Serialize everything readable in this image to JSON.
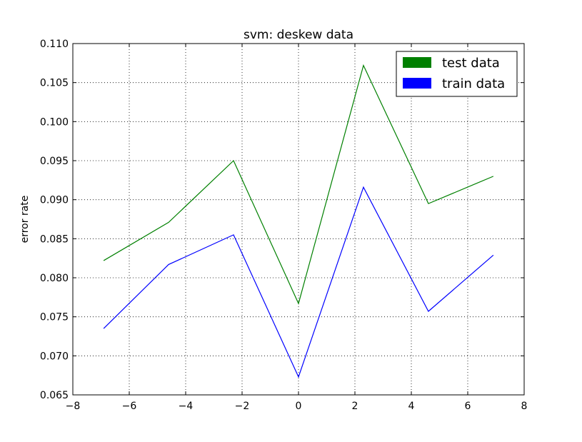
{
  "chart_data": {
    "type": "line",
    "title": "svm: deskew data",
    "xlabel": "",
    "ylabel": "error rate",
    "xlim": [
      -8,
      8
    ],
    "ylim": [
      0.065,
      0.11
    ],
    "xticks": [
      -8,
      -6,
      -4,
      -2,
      0,
      2,
      4,
      6,
      8
    ],
    "xtick_labels": [
      "−8",
      "−6",
      "−4",
      "−2",
      "0",
      "2",
      "4",
      "6",
      "8"
    ],
    "yticks": [
      0.065,
      0.07,
      0.075,
      0.08,
      0.085,
      0.09,
      0.095,
      0.1,
      0.105,
      0.11
    ],
    "ytick_labels": [
      "0.065",
      "0.070",
      "0.075",
      "0.080",
      "0.085",
      "0.090",
      "0.095",
      "0.100",
      "0.105",
      "0.110"
    ],
    "grid": true,
    "legend_position": "top-right",
    "x": [
      -6.908,
      -4.605,
      -2.303,
      0,
      2.303,
      4.605,
      6.908
    ],
    "series": [
      {
        "name": "test data",
        "color": "#008000",
        "values": [
          0.0822,
          0.0871,
          0.095,
          0.0767,
          0.1072,
          0.0895,
          0.093
        ]
      },
      {
        "name": "train data",
        "color": "#0000ff",
        "values": [
          0.0735,
          0.0817,
          0.0855,
          0.0673,
          0.0916,
          0.0757,
          0.0829
        ]
      }
    ]
  }
}
